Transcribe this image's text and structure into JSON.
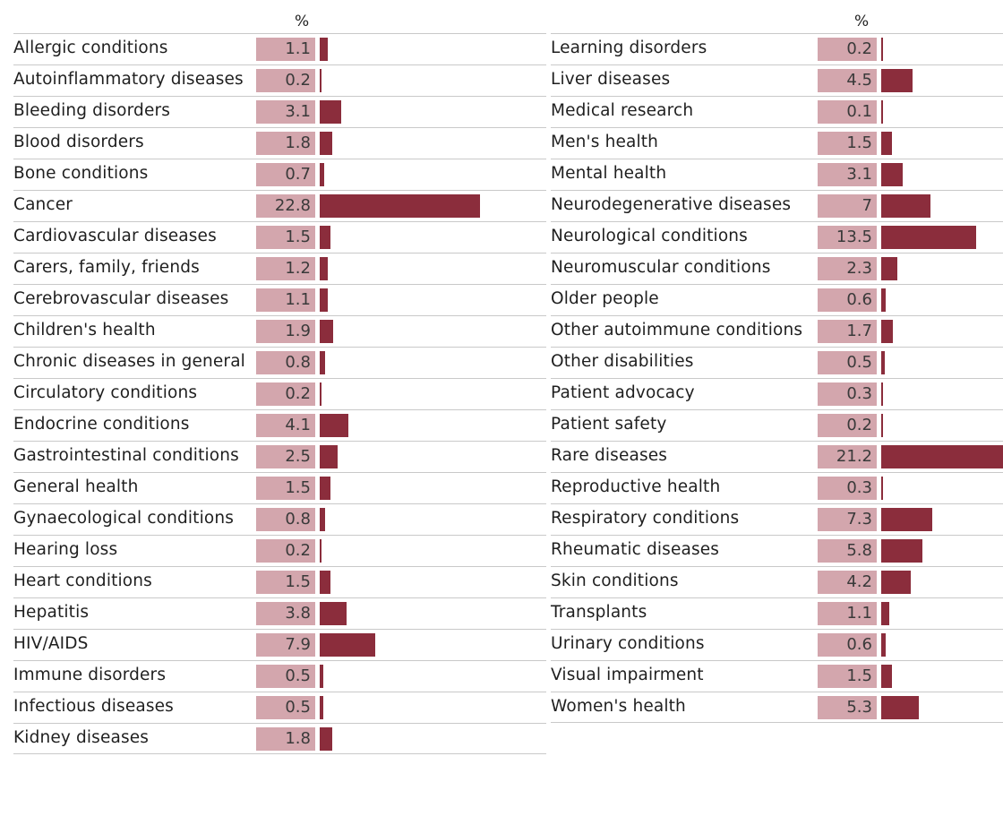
{
  "chart_data": {
    "type": "bar",
    "unit_header": "%",
    "bar_color": "#8b2d3c",
    "value_box_color": "#d3a6ad",
    "panels": [
      {
        "categories": [
          "Allergic conditions",
          "Autoinflammatory diseases",
          "Bleeding disorders",
          "Blood disorders",
          "Bone conditions",
          "Cancer",
          "Cardiovascular diseases",
          "Carers, family, friends",
          "Cerebrovascular diseases",
          "Children's health",
          "Chronic diseases in general",
          "Circulatory conditions",
          "Endocrine conditions",
          "Gastrointestinal conditions",
          "General health",
          "Gynaecological conditions",
          "Hearing loss",
          "Heart conditions",
          "Hepatitis",
          "HIV/AIDS",
          "Immune disorders",
          "Infectious diseases",
          "Kidney diseases"
        ],
        "values": [
          "1.1",
          "0.2",
          "3.1",
          "1.8",
          "0.7",
          "22.8",
          "1.5",
          "1.2",
          "1.1",
          "1.9",
          "0.8",
          "0.2",
          "4.1",
          "2.5",
          "1.5",
          "0.8",
          "0.2",
          "1.5",
          "3.8",
          "7.9",
          "0.5",
          "0.5",
          "1.8"
        ]
      },
      {
        "categories": [
          "Learning disorders",
          "Liver diseases",
          "Medical research",
          "Men's health",
          "Mental health",
          "Neurodegenerative diseases",
          "Neurological conditions",
          "Neuromuscular conditions",
          "Older people",
          "Other autoimmune conditions",
          "Other disabilities",
          "Patient advocacy",
          "Patient safety",
          "Rare diseases",
          "Reproductive health",
          "Respiratory conditions",
          "Rheumatic diseases",
          "Skin conditions",
          "Transplants",
          "Urinary conditions",
          "Visual impairment",
          "Women's health"
        ],
        "values": [
          "0.2",
          "4.5",
          "0.1",
          "1.5",
          "3.1",
          "7",
          "13.5",
          "2.3",
          "0.6",
          "1.7",
          "0.5",
          "0.3",
          "0.2",
          "21.2",
          "0.3",
          "7.3",
          "5.8",
          "4.2",
          "1.1",
          "0.6",
          "1.5",
          "5.3"
        ]
      }
    ]
  }
}
